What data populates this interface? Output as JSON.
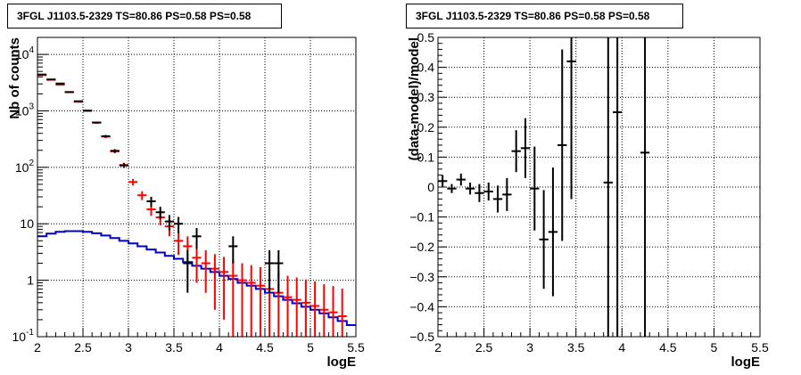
{
  "chart_data": [
    {
      "type": "line",
      "title": "3FGL J1103.5-2329 TS=80.86 PS=0.58 PS=0.58",
      "xlabel": "logE",
      "ylabel": "Nb of counts",
      "xlim": [
        2,
        5.5
      ],
      "ylim": [
        0.1,
        20000
      ],
      "yscale": "log",
      "grid": true,
      "x_ticks": [
        "2",
        "2.5",
        "3",
        "3.5",
        "4",
        "4.5",
        "5",
        "5.5"
      ],
      "y_ticks": [
        "10^-1",
        "1",
        "10",
        "10^2",
        "10^3",
        "10^4"
      ],
      "colors": {
        "data": "#000000",
        "model": "#ff0000",
        "background": "#0000cc"
      },
      "series": [
        {
          "role": "data",
          "x": [
            2.05,
            2.15,
            2.25,
            2.35,
            2.45,
            2.55,
            2.65,
            2.75,
            2.85,
            2.95,
            3.05,
            3.15,
            3.25,
            3.35,
            3.45,
            3.55,
            3.65,
            3.75,
            3.85,
            3.95,
            4.05,
            4.15,
            4.25,
            4.35,
            4.45,
            4.55,
            4.65,
            4.75,
            4.85,
            4.95,
            5.05,
            5.15,
            5.25,
            5.35
          ],
          "y": [
            4400,
            3600,
            3050,
            2150,
            1480,
            1010,
            620,
            355,
            196,
            108,
            null,
            null,
            25,
            16,
            11,
            10,
            2,
            6,
            null,
            null,
            null,
            4,
            null,
            null,
            null,
            2,
            2,
            null,
            null,
            null,
            null,
            null,
            null,
            null
          ],
          "yerr": [
            66,
            60,
            55,
            46,
            38,
            32,
            25,
            19,
            14,
            10.4,
            null,
            null,
            5,
            4,
            3.3,
            3.2,
            1.4,
            2.4,
            null,
            null,
            null,
            2,
            null,
            null,
            null,
            1.4,
            1.4,
            null,
            null,
            null,
            null,
            null,
            null,
            null
          ]
        },
        {
          "role": "model",
          "x": [
            2.05,
            2.15,
            2.25,
            2.35,
            2.45,
            2.55,
            2.65,
            2.75,
            2.85,
            2.95,
            3.05,
            3.15,
            3.25,
            3.35,
            3.45,
            3.55,
            3.65,
            3.75,
            3.85,
            3.95,
            4.05,
            4.15,
            4.25,
            4.35,
            4.45,
            4.55,
            4.65,
            4.75,
            4.85,
            4.95,
            5.05,
            5.15,
            5.25,
            5.35
          ],
          "y": [
            4300,
            3550,
            2900,
            2150,
            1450,
            1000,
            620,
            350,
            192,
            110,
            55,
            32,
            18,
            13,
            9,
            5,
            4,
            2.5,
            2,
            1.6,
            1.4,
            1.2,
            1,
            0.9,
            0.8,
            0.7,
            0.6,
            0.5,
            0.45,
            0.4,
            0.35,
            0.3,
            0.27,
            0.23
          ],
          "yerr": [
            66,
            60,
            54,
            46,
            38,
            32,
            25,
            19,
            14,
            10.5,
            7.4,
            5.7,
            4.2,
            3.6,
            3,
            2.2,
            2,
            1.6,
            1.4,
            1.3,
            1.2,
            1.1,
            1,
            0.95,
            0.9,
            0.85,
            0.8,
            0.7,
            0.67,
            0.63,
            0.6,
            0.55,
            0.52,
            0.48
          ]
        },
        {
          "role": "background",
          "x": [
            2.0,
            2.1,
            2.2,
            2.3,
            2.4,
            2.5,
            2.6,
            2.7,
            2.8,
            2.9,
            3.0,
            3.1,
            3.2,
            3.3,
            3.4,
            3.5,
            3.6,
            3.7,
            3.8,
            3.9,
            4.0,
            4.1,
            4.2,
            4.3,
            4.4,
            4.5,
            4.6,
            4.7,
            4.8,
            4.9,
            5.0,
            5.1,
            5.2,
            5.3,
            5.4,
            5.5
          ],
          "y": [
            6.0,
            6.7,
            7.2,
            7.4,
            7.4,
            7.2,
            6.8,
            6.2,
            5.6,
            5.0,
            4.5,
            4.0,
            3.5,
            3.1,
            2.7,
            2.4,
            2.1,
            1.8,
            1.6,
            1.4,
            1.2,
            1.05,
            0.9,
            0.8,
            0.7,
            0.6,
            0.52,
            0.45,
            0.39,
            0.34,
            0.3,
            0.26,
            0.22,
            0.19,
            0.16,
            0.16
          ]
        }
      ]
    },
    {
      "type": "scatter",
      "title": "3FGL J1103.5-2329 TS=80.86 PS=0.58 PS=0.58",
      "xlabel": "logE",
      "ylabel": "(data-model)/model",
      "xlim": [
        2,
        5.5
      ],
      "ylim": [
        -0.5,
        0.5
      ],
      "grid": true,
      "x_ticks": [
        "2",
        "2.5",
        "3",
        "3.5",
        "4",
        "4.5",
        "5",
        "5.5"
      ],
      "y_ticks": [
        "-0.5",
        "-0.4",
        "-0.3",
        "-0.2",
        "-0.1",
        "0",
        "0.1",
        "0.2",
        "0.3",
        "0.4",
        "0.5"
      ],
      "colors": {
        "data": "#000000"
      },
      "series": [
        {
          "x": [
            2.05,
            2.15,
            2.25,
            2.35,
            2.45,
            2.55,
            2.65,
            2.75,
            2.85,
            2.95,
            3.05,
            3.15,
            3.25,
            3.35,
            3.45,
            3.85,
            3.95,
            4.25
          ],
          "y": [
            0.02,
            -0.005,
            0.025,
            -0.005,
            -0.02,
            -0.015,
            -0.04,
            -0.025,
            0.12,
            0.13,
            -0.005,
            -0.175,
            -0.15,
            0.14,
            0.42,
            0.015,
            0.25,
            0.115
          ],
          "yerr": [
            0.02,
            0.015,
            0.02,
            0.02,
            0.03,
            0.03,
            0.045,
            0.055,
            0.07,
            0.1,
            0.14,
            0.165,
            0.215,
            0.32,
            0.46,
            1.0,
            1.0,
            1.0
          ]
        }
      ]
    }
  ]
}
